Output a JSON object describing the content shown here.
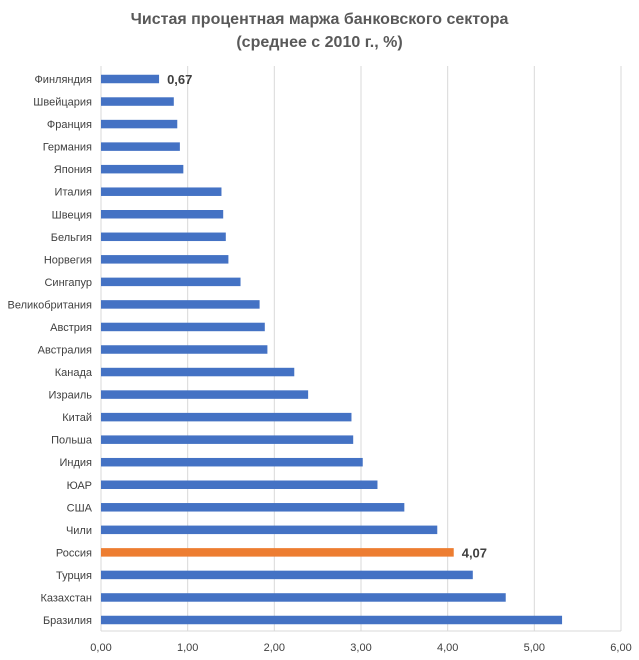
{
  "chart_data": {
    "type": "bar",
    "orientation": "horizontal",
    "title": "Чистая процентная маржа банковского сектора",
    "subtitle": "(среднее с 2010 г., %)",
    "xlabel": "",
    "ylabel": "",
    "xlim": [
      0,
      6
    ],
    "x_ticks": [
      "0,00",
      "1,00",
      "2,00",
      "3,00",
      "4,00",
      "5,00",
      "6,00"
    ],
    "grid": "vertical",
    "legend": "none",
    "categories": [
      "Финляндия",
      "Швейцария",
      "Франция",
      "Германия",
      "Япония",
      "Италия",
      "Швеция",
      "Бельгия",
      "Норвегия",
      "Сингапур",
      "Великобритания",
      "Австрия",
      "Австралия",
      "Канада",
      "Израиль",
      "Китай",
      "Польша",
      "Индия",
      "ЮАР",
      "США",
      "Чили",
      "Россия",
      "Турция",
      "Казахстан",
      "Бразилия"
    ],
    "values": [
      0.67,
      0.84,
      0.88,
      0.91,
      0.95,
      1.39,
      1.41,
      1.44,
      1.47,
      1.61,
      1.83,
      1.89,
      1.92,
      2.23,
      2.39,
      2.89,
      2.91,
      3.02,
      3.19,
      3.5,
      3.88,
      4.07,
      4.29,
      4.67,
      5.32
    ],
    "data_labels": [
      {
        "category": "Финляндия",
        "text": "0,67"
      },
      {
        "category": "Россия",
        "text": "4,07"
      }
    ],
    "colors": {
      "default": "#4472C4",
      "highlight": "#ED7D31",
      "grid": "#D9D9D9",
      "text": "#404040",
      "title": "#595959"
    },
    "highlight_category": "Россия"
  }
}
